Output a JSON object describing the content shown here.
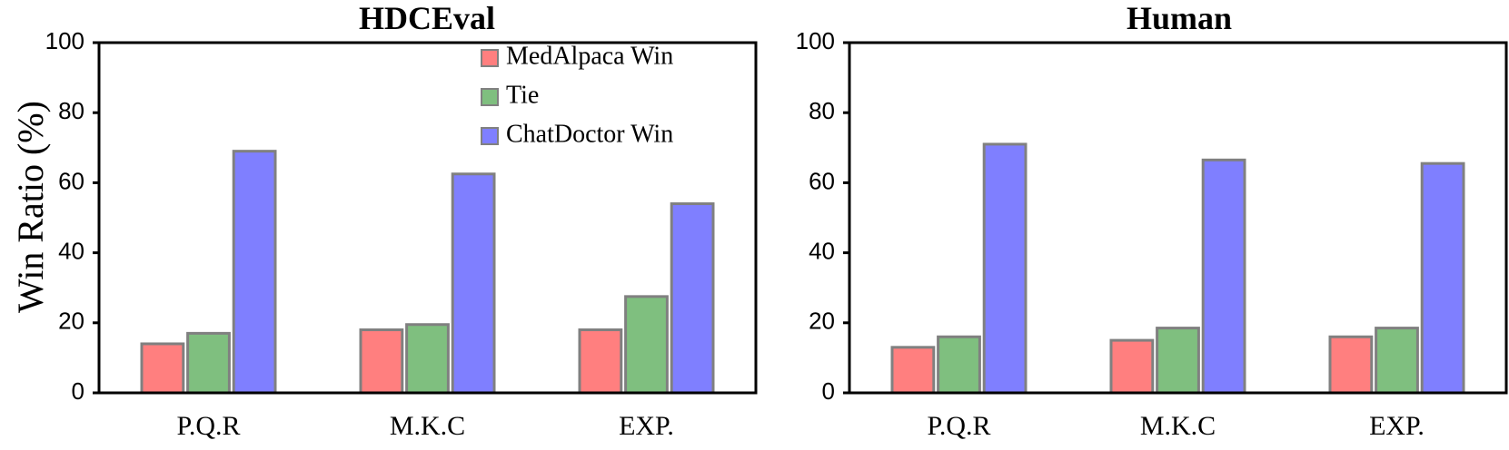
{
  "y_axis_label": "Win Ratio (%)",
  "legend": [
    {
      "label": "MedAlpaca Win",
      "color": "#ff7f7f"
    },
    {
      "label": "Tie",
      "color": "#7fbf7f"
    },
    {
      "label": "ChatDoctor Win",
      "color": "#7f7fff"
    }
  ],
  "chart_data": [
    {
      "type": "bar",
      "title": "HDCEval",
      "ylabel": "Win Ratio (%)",
      "ylim": [
        0,
        100
      ],
      "yticks": [
        "0",
        "20",
        "40",
        "60",
        "80",
        "100"
      ],
      "categories": [
        "P.Q.R",
        "M.K.C",
        "EXP."
      ],
      "legend_position": "top-right",
      "series": [
        {
          "name": "MedAlpaca Win",
          "color": "#ff7f7f",
          "values": [
            14,
            18,
            18
          ]
        },
        {
          "name": "Tie",
          "color": "#7fbf7f",
          "values": [
            17,
            19.5,
            27.5
          ]
        },
        {
          "name": "ChatDoctor Win",
          "color": "#7f7fff",
          "values": [
            69,
            62.5,
            54
          ]
        }
      ]
    },
    {
      "type": "bar",
      "title": "Human",
      "ylim": [
        0,
        100
      ],
      "yticks": [
        "0",
        "20",
        "40",
        "60",
        "80",
        "100"
      ],
      "categories": [
        "P.Q.R",
        "M.K.C",
        "EXP."
      ],
      "series": [
        {
          "name": "MedAlpaca Win",
          "color": "#ff7f7f",
          "values": [
            13,
            15,
            16
          ]
        },
        {
          "name": "Tie",
          "color": "#7fbf7f",
          "values": [
            16,
            18.5,
            18.5
          ]
        },
        {
          "name": "ChatDoctor Win",
          "color": "#7f7fff",
          "values": [
            71,
            66.5,
            65.5
          ]
        }
      ]
    }
  ]
}
